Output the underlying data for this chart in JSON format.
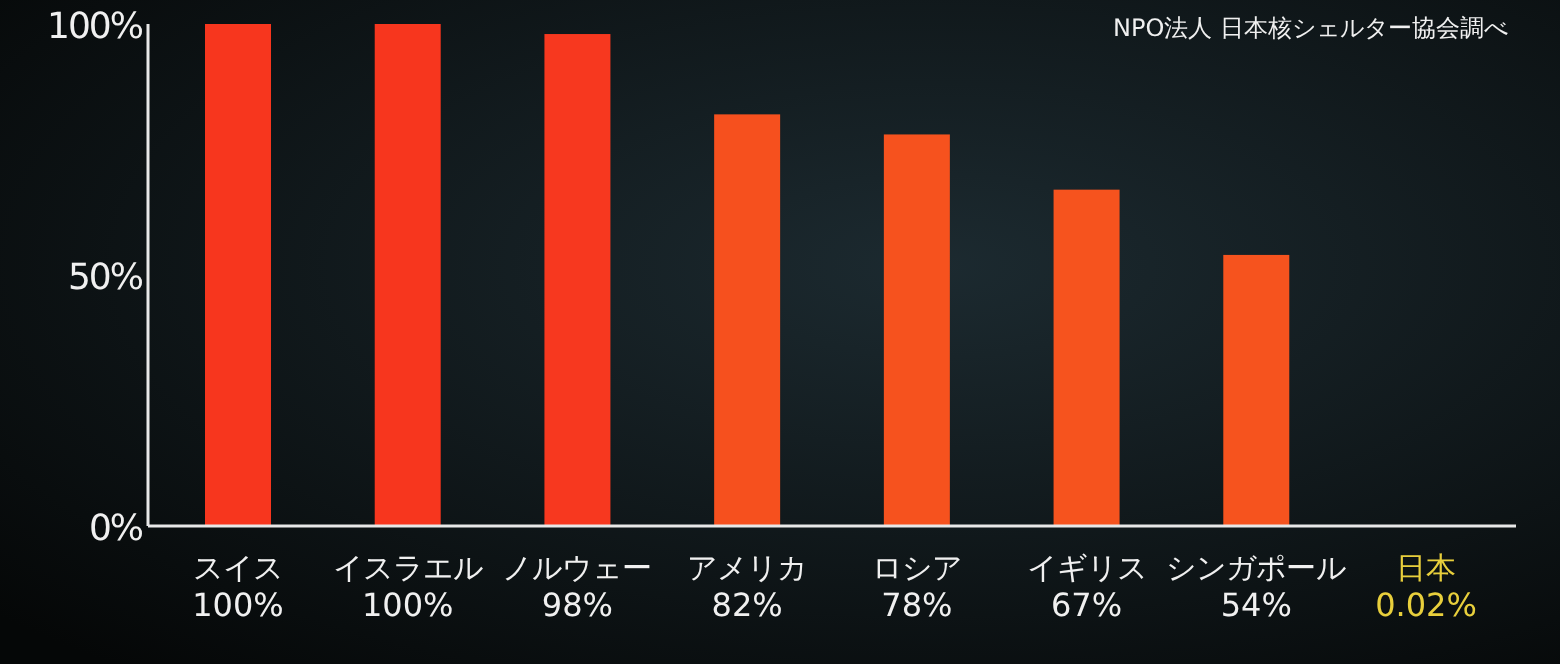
{
  "chart_data": {
    "type": "bar",
    "categories": [
      "スイス",
      "イスラエル",
      "ノルウェー",
      "アメリカ",
      "ロシア",
      "イギリス",
      "シンガポール",
      "日本"
    ],
    "values": [
      100,
      100,
      98,
      82,
      78,
      67,
      54,
      0.02
    ],
    "value_labels": [
      "100%",
      "100%",
      "98%",
      "82%",
      "78%",
      "67%",
      "54%",
      "0.02%"
    ],
    "colors": [
      "#f7361e",
      "#f7361e",
      "#f7381f",
      "#f6501e",
      "#f6521e",
      "#f6531e",
      "#f6531e",
      "#e8cf3c"
    ],
    "ylim": [
      0,
      100
    ],
    "yticks": [
      {
        "value": 0,
        "label": "0%"
      },
      {
        "value": 50,
        "label": "50%"
      },
      {
        "value": 100,
        "label": "100%"
      }
    ],
    "annotations": [
      "NPO法人 日本核シェルター協会調べ"
    ],
    "grid": false
  }
}
